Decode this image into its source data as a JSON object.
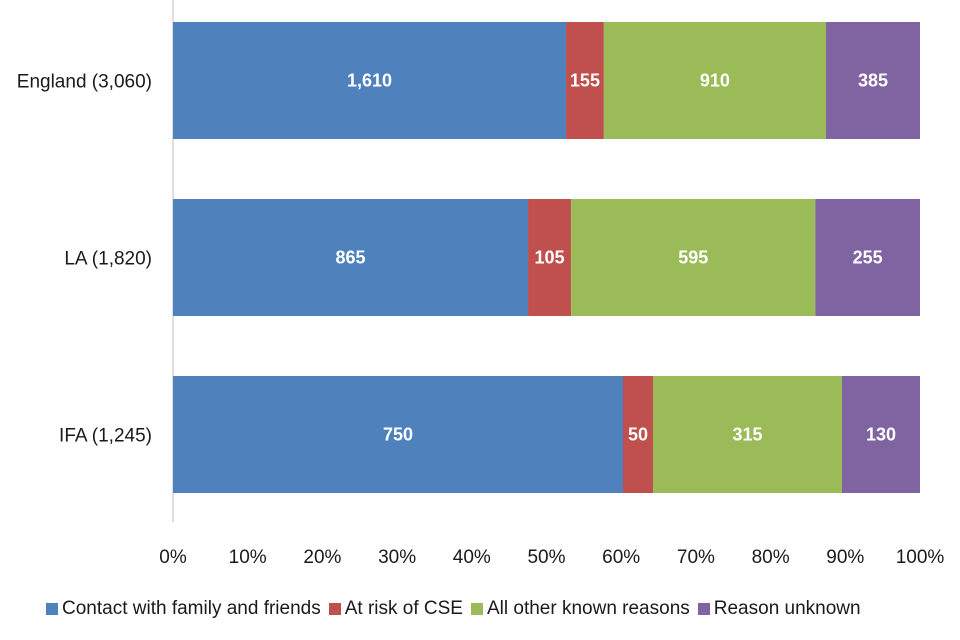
{
  "chart_data": {
    "type": "bar",
    "orientation": "horizontal",
    "stacked": "percent",
    "categories": [
      "England (3,060)",
      "LA (1,820)",
      "IFA (1,245)"
    ],
    "series": [
      {
        "name": "Contact with family and friends",
        "color": "#4F81BD",
        "values": [
          1610,
          865,
          750
        ]
      },
      {
        "name": "At risk of CSE",
        "color": "#C0504D",
        "values": [
          155,
          105,
          50
        ]
      },
      {
        "name": "All other known reasons",
        "color": "#9BBB59",
        "values": [
          910,
          595,
          315
        ]
      },
      {
        "name": "Reason unknown",
        "color": "#8064A2",
        "values": [
          385,
          255,
          130
        ]
      }
    ],
    "xticks": [
      "0%",
      "10%",
      "20%",
      "30%",
      "40%",
      "50%",
      "60%",
      "70%",
      "80%",
      "90%",
      "100%"
    ],
    "xlim": [
      0,
      100
    ],
    "grid": false,
    "legend_position": "bottom"
  }
}
